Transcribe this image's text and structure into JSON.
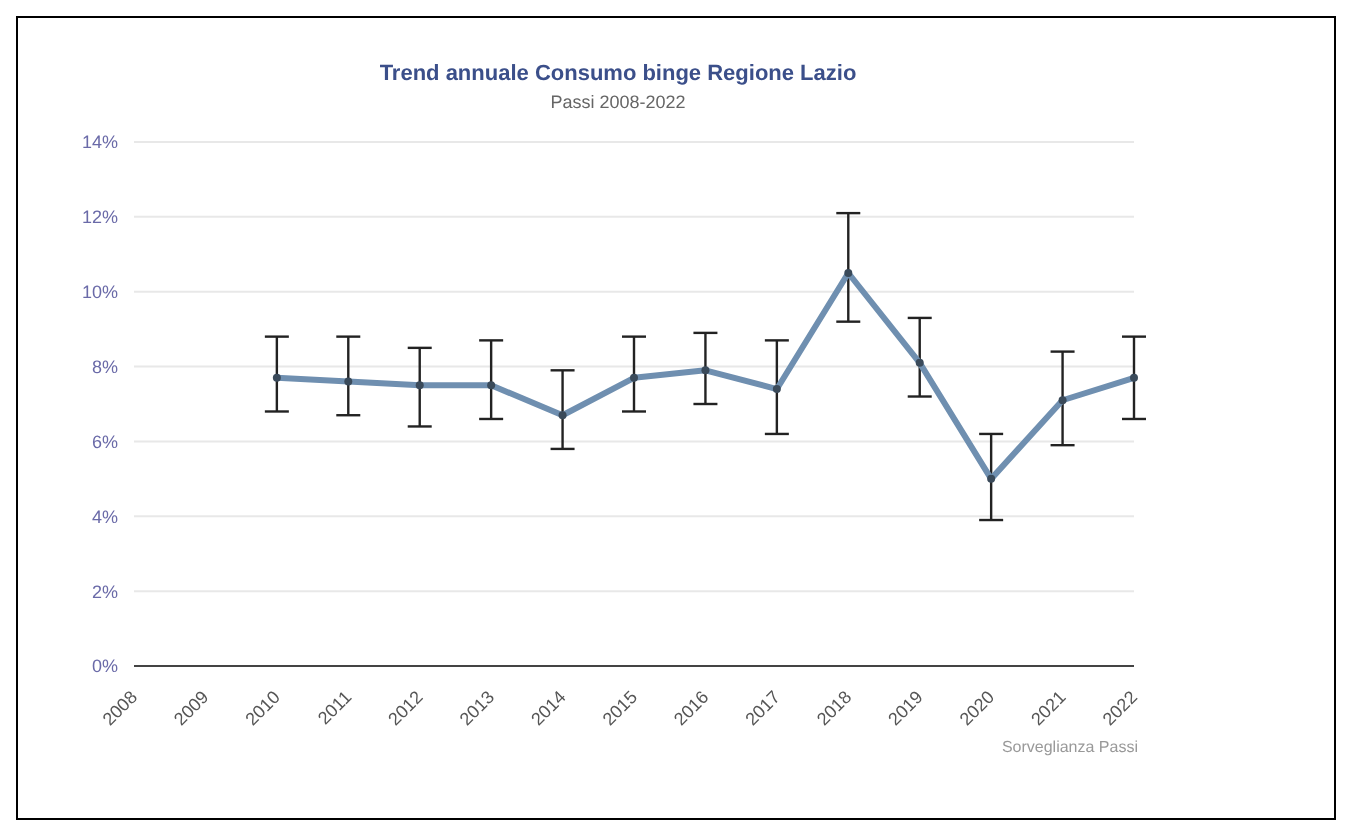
{
  "chart_data": {
    "type": "line",
    "title": "Trend annuale Consumo binge Regione Lazio",
    "subtitle": "Passi 2008-2022",
    "categories": [
      "2008",
      "2009",
      "2010",
      "2011",
      "2012",
      "2013",
      "2014",
      "2015",
      "2016",
      "2017",
      "2018",
      "2019",
      "2020",
      "2021",
      "2022"
    ],
    "series": [
      {
        "color": "#6f8fb0",
        "values": [
          null,
          null,
          7.7,
          7.6,
          7.5,
          7.5,
          6.7,
          7.7,
          7.9,
          7.4,
          10.5,
          8.1,
          5.0,
          7.1,
          7.7
        ],
        "errors": [
          null,
          null,
          [
            6.8,
            8.8
          ],
          [
            6.7,
            8.8
          ],
          [
            6.4,
            8.5
          ],
          [
            6.6,
            8.7
          ],
          [
            5.8,
            7.9
          ],
          [
            6.8,
            8.8
          ],
          [
            7.0,
            8.9
          ],
          [
            6.2,
            8.7
          ],
          [
            9.2,
            12.1
          ],
          [
            7.2,
            9.3
          ],
          [
            3.9,
            6.2
          ],
          [
            5.9,
            8.4
          ],
          [
            6.6,
            8.8
          ]
        ]
      }
    ],
    "ylim": [
      0,
      14
    ],
    "yticks": [
      {
        "value": 0,
        "label": "0%"
      },
      {
        "value": 2,
        "label": "2%"
      },
      {
        "value": 4,
        "label": "4%"
      },
      {
        "value": 6,
        "label": "6%"
      },
      {
        "value": 8,
        "label": "8%"
      },
      {
        "value": 10,
        "label": "10%"
      },
      {
        "value": 12,
        "label": "12%"
      },
      {
        "value": 14,
        "label": "14%"
      }
    ],
    "grid": "y",
    "marker": "circle",
    "line_style": "solid",
    "annotations": [
      "Sorveglianza Passi"
    ]
  }
}
